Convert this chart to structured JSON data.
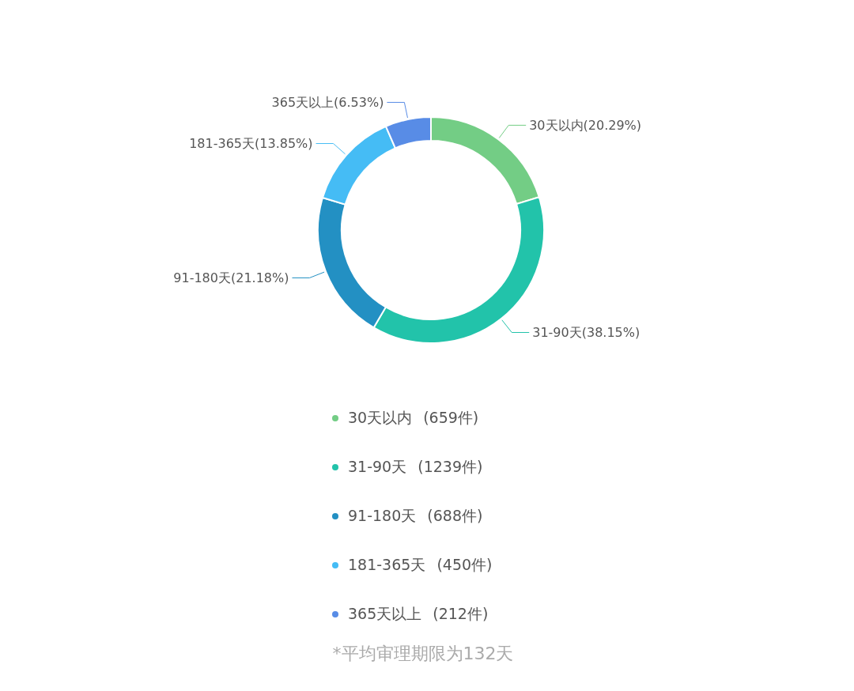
{
  "chart_data": {
    "type": "donut",
    "categories": [
      "30天以内",
      "31-90天",
      "91-180天",
      "181-365天",
      "365天以上"
    ],
    "values": [
      20.29,
      38.15,
      21.18,
      13.85,
      6.53
    ],
    "value_labels": [
      "(20.29%)",
      "(38.15%)",
      "(21.18%)",
      "(13.85%)",
      "(6.53%)"
    ],
    "colors": [
      "#73cd85",
      "#22c3aa",
      "#2390c3",
      "#45bcf5",
      "#588ce6"
    ],
    "legend": "bottom",
    "annotations": [
      "(659件)",
      "(1239件)",
      "(688件)",
      "(450件)",
      "(212件)",
      "*平均审理期限为132天"
    ]
  }
}
